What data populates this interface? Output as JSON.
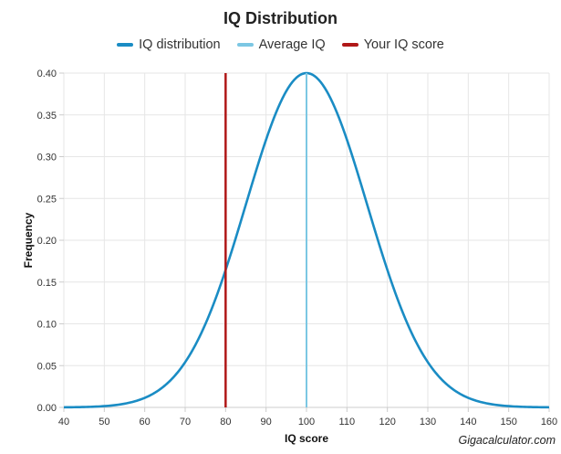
{
  "chart_data": {
    "type": "line",
    "title": "IQ Distribution",
    "xlabel": "IQ score",
    "ylabel": "Frequency",
    "xlim": [
      40,
      160
    ],
    "ylim": [
      0,
      0.4
    ],
    "x_ticks": [
      40,
      50,
      60,
      70,
      80,
      90,
      100,
      110,
      120,
      130,
      140,
      150,
      160
    ],
    "y_ticks": [
      "0.00",
      "0.05",
      "0.10",
      "0.15",
      "0.20",
      "0.25",
      "0.30",
      "0.35",
      "0.40"
    ],
    "series": [
      {
        "name": "IQ distribution",
        "kind": "normal-curve",
        "mean": 100,
        "sd": 15,
        "scale_peak": 0.4,
        "color": "#1a8cc4"
      },
      {
        "name": "Average IQ",
        "kind": "vertical-line",
        "x": 100,
        "color": "#7cc7e3"
      },
      {
        "name": "Your IQ score",
        "kind": "vertical-line",
        "x": 80,
        "color": "#b01818"
      }
    ],
    "grid": true,
    "legend_position": "top-center"
  },
  "watermark": "Gigacalculator.com"
}
